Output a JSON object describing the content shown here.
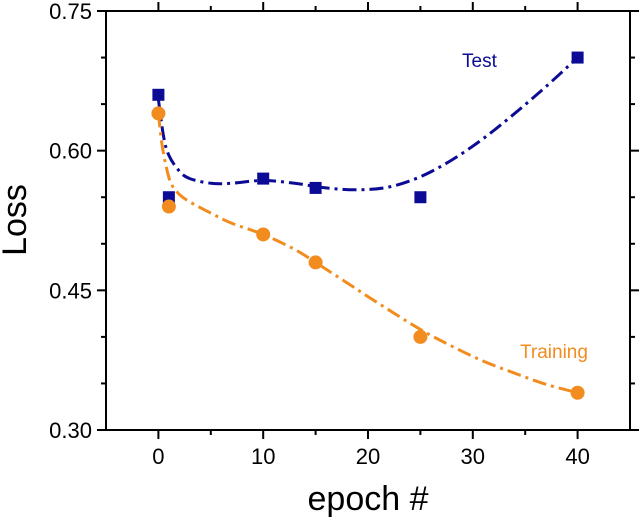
{
  "chart_data": {
    "type": "scatter",
    "title": "",
    "xlabel": "epoch #",
    "ylabel": "Loss",
    "xlim": [
      -5,
      45
    ],
    "ylim": [
      0.3,
      0.75
    ],
    "xticks": [
      0,
      10,
      20,
      30,
      40
    ],
    "yticks": [
      0.3,
      0.45,
      0.6,
      0.75
    ],
    "xtick_labels": [
      "0",
      "10",
      "20",
      "30",
      "40"
    ],
    "ytick_labels": [
      "0.30",
      "0.45",
      "0.60",
      "0.75"
    ],
    "grid": false,
    "series": [
      {
        "name": "Test",
        "marker": "square",
        "color": "#0b0b96",
        "x": [
          0,
          1,
          10,
          15,
          25,
          40
        ],
        "y": [
          0.66,
          0.55,
          0.57,
          0.56,
          0.55,
          0.7
        ],
        "fit_x": [
          0,
          0.5,
          1,
          2,
          3,
          5,
          7,
          10,
          13,
          16,
          19,
          22,
          25,
          28,
          31,
          34,
          37,
          40
        ],
        "fit_y": [
          0.655,
          0.615,
          0.595,
          0.578,
          0.57,
          0.565,
          0.565,
          0.568,
          0.565,
          0.56,
          0.558,
          0.561,
          0.572,
          0.59,
          0.613,
          0.64,
          0.669,
          0.7
        ]
      },
      {
        "name": "Training",
        "marker": "circle",
        "color": "#f28c1e",
        "x": [
          0,
          1,
          10,
          15,
          25,
          40
        ],
        "y": [
          0.64,
          0.54,
          0.51,
          0.48,
          0.4,
          0.34
        ],
        "fit_x": [
          0,
          0.3,
          0.7,
          1.2,
          2,
          3,
          5,
          7,
          10,
          13,
          15,
          18,
          21,
          25,
          28,
          31,
          34,
          37,
          40
        ],
        "fit_y": [
          0.64,
          0.61,
          0.585,
          0.565,
          0.553,
          0.545,
          0.533,
          0.522,
          0.51,
          0.494,
          0.48,
          0.458,
          0.436,
          0.408,
          0.39,
          0.374,
          0.361,
          0.349,
          0.34
        ]
      }
    ],
    "annotations": [
      {
        "text": "Test",
        "series": "Test"
      },
      {
        "text": "Training",
        "series": "Training"
      }
    ]
  }
}
